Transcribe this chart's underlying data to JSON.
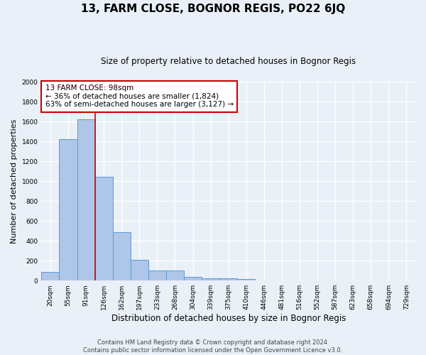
{
  "title": "13, FARM CLOSE, BOGNOR REGIS, PO22 6JQ",
  "subtitle": "Size of property relative to detached houses in Bognor Regis",
  "xlabel": "Distribution of detached houses by size in Bognor Regis",
  "ylabel": "Number of detached properties",
  "bar_color": "#aec6e8",
  "bar_edge_color": "#5b9bd5",
  "bg_color": "#eaf0f8",
  "grid_color": "#ffffff",
  "fig_bg_color": "#eaf0f8",
  "categories": [
    "20sqm",
    "55sqm",
    "91sqm",
    "126sqm",
    "162sqm",
    "197sqm",
    "233sqm",
    "268sqm",
    "304sqm",
    "339sqm",
    "375sqm",
    "410sqm",
    "446sqm",
    "481sqm",
    "516sqm",
    "552sqm",
    "587sqm",
    "623sqm",
    "658sqm",
    "694sqm",
    "729sqm"
  ],
  "bar_heights": [
    85,
    1420,
    1620,
    1045,
    490,
    205,
    100,
    100,
    40,
    25,
    20,
    15,
    0,
    0,
    0,
    0,
    0,
    0,
    0,
    0,
    0
  ],
  "ylim": [
    0,
    2000
  ],
  "vline_x": 2.5,
  "annotation_line1": "13 FARM CLOSE: 98sqm",
  "annotation_line2": "← 36% of detached houses are smaller (1,824)",
  "annotation_line3": "63% of semi-detached houses are larger (3,127) →",
  "annotation_box_color": "#ffffff",
  "annotation_box_edge": "#cc0000",
  "vline_color": "#cc0000",
  "footer_line1": "Contains HM Land Registry data © Crown copyright and database right 2024.",
  "footer_line2": "Contains public sector information licensed under the Open Government Licence v3.0.",
  "title_fontsize": 11,
  "subtitle_fontsize": 8.5,
  "ylabel_fontsize": 8,
  "xlabel_fontsize": 8.5,
  "tick_fontsize": 6.5,
  "annotation_fontsize": 7.5,
  "footer_fontsize": 6
}
